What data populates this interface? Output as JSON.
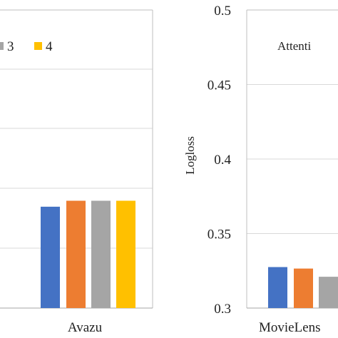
{
  "colors": {
    "series": [
      "#4472C4",
      "#ED7D31",
      "#A5A5A5",
      "#FFC000"
    ],
    "grid": "#d9d9d9",
    "frame": "#bfbfbf"
  },
  "chart_data": [
    {
      "type": "bar",
      "panel": "left",
      "categories": [
        "Avazu"
      ],
      "series": [
        {
          "name": "",
          "values": [
            0.3785
          ]
        },
        {
          "name": "",
          "values": [
            0.379
          ]
        },
        {
          "name": "",
          "values": [
            0.379
          ]
        },
        {
          "name": "",
          "values": [
            0.379
          ]
        }
      ],
      "legend": {
        "entries": [
          "3",
          "4"
        ],
        "series_index": [
          2,
          3
        ],
        "placement": "top"
      },
      "ylim": [
        0.37,
        0.395
      ],
      "grid": true
    },
    {
      "type": "bar",
      "panel": "right",
      "annotation": "Attenti",
      "ylabel": "Logloss",
      "categories": [
        "MovieLens"
      ],
      "series": [
        {
          "name": "",
          "values": [
            0.3275
          ]
        },
        {
          "name": "",
          "values": [
            0.3265
          ]
        },
        {
          "name": "",
          "values": [
            0.321
          ]
        }
      ],
      "yticks": [
        "0.3",
        "0.35",
        "0.4",
        "0.45",
        "0.5"
      ],
      "ytick_values": [
        0.3,
        0.35,
        0.4,
        0.45,
        0.5
      ],
      "ylim": [
        0.3,
        0.5
      ],
      "grid": true
    }
  ]
}
